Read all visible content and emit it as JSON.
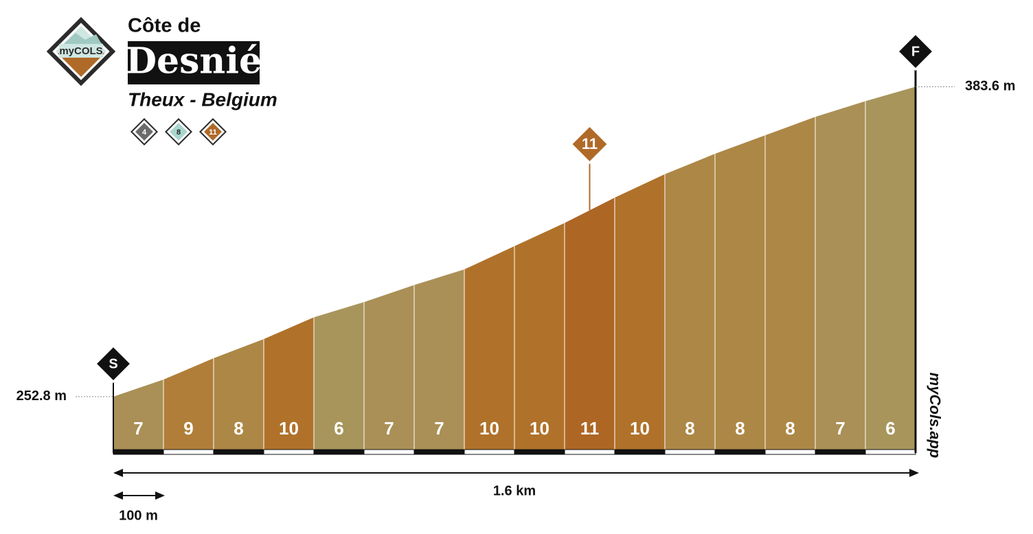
{
  "chart_data": {
    "type": "climb-profile",
    "brand": "myCOLS",
    "pretitle": "Côte de",
    "title": "Desnié",
    "subtitle": "Theux - Belgium",
    "badges": [
      {
        "label": "4",
        "color": "#6b6b6b"
      },
      {
        "label": "8",
        "color": "#a9d6cd"
      },
      {
        "label": "11",
        "color": "#b06a28"
      }
    ],
    "start_marker": "S",
    "finish_marker": "F",
    "gradients": [
      7,
      9,
      8,
      10,
      6,
      7,
      7,
      10,
      10,
      11,
      10,
      8,
      8,
      8,
      7,
      6
    ],
    "colors": [
      "#aa9056",
      "#b07e38",
      "#ad8746",
      "#b0722a",
      "#a8955c",
      "#aa9056",
      "#aa9056",
      "#b0722a",
      "#b0722a",
      "#ad6624",
      "#b0722a",
      "#ad8746",
      "#ad8746",
      "#ad8746",
      "#aa9056",
      "#a8955c"
    ],
    "elevations": [
      252.8,
      260.0,
      269.0,
      277.1,
      286.3,
      292.7,
      299.9,
      306.5,
      316.3,
      326.1,
      336.8,
      346.7,
      355.3,
      363.1,
      370.9,
      377.5,
      383.6
    ],
    "elevation_labels": {
      "start": "252.8 m",
      "end": "383.6 m"
    },
    "ylim": [
      229,
      384
    ],
    "distance": {
      "value": 1.6,
      "label": "1.6 km"
    },
    "scale_bar": {
      "value": 0.1,
      "label": "100 m"
    },
    "watermark": "myCols.app"
  }
}
